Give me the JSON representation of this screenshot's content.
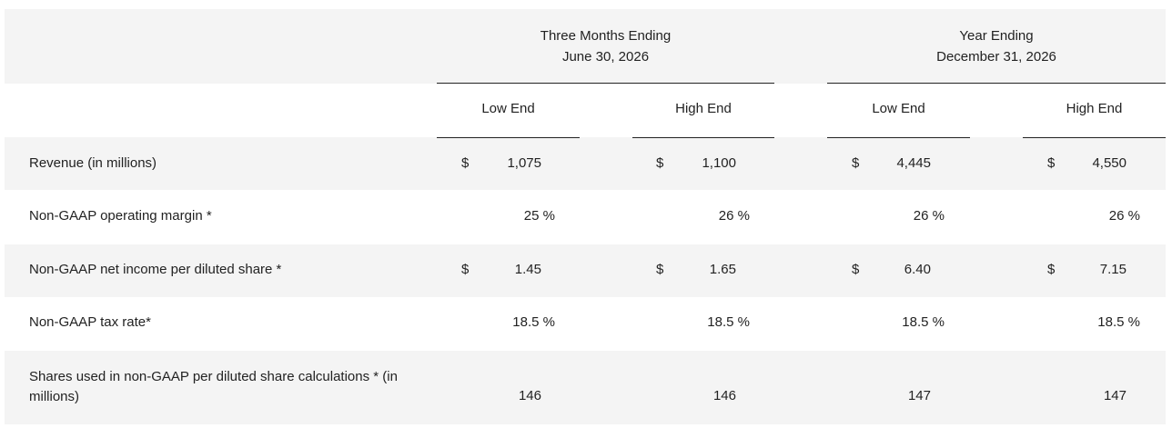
{
  "header": {
    "period_groups": [
      {
        "line1": "Three Months Ending",
        "line2": "June 30, 2026"
      },
      {
        "line1": "Year Ending",
        "line2": "December 31, 2026"
      }
    ],
    "columns": [
      "Low End",
      "High End",
      "Low End",
      "High End"
    ]
  },
  "rows": [
    {
      "label": "Revenue (in millions)",
      "cells": [
        {
          "currency": "$",
          "value": "1,075"
        },
        {
          "currency": "$",
          "value": "1,100"
        },
        {
          "currency": "$",
          "value": "4,445"
        },
        {
          "currency": "$",
          "value": "4,550"
        }
      ]
    },
    {
      "label": "Non-GAAP operating margin *",
      "cells": [
        {
          "currency": "",
          "value": "25 %"
        },
        {
          "currency": "",
          "value": "26 %"
        },
        {
          "currency": "",
          "value": "26 %"
        },
        {
          "currency": "",
          "value": "26 %"
        }
      ]
    },
    {
      "label": "Non-GAAP net income per diluted share *",
      "cells": [
        {
          "currency": "$",
          "value": "1.45"
        },
        {
          "currency": "$",
          "value": "1.65"
        },
        {
          "currency": "$",
          "value": "6.40"
        },
        {
          "currency": "$",
          "value": "7.15"
        }
      ]
    },
    {
      "label": "Non-GAAP tax rate*",
      "cells": [
        {
          "currency": "",
          "value": "18.5 %"
        },
        {
          "currency": "",
          "value": "18.5 %"
        },
        {
          "currency": "",
          "value": "18.5 %"
        },
        {
          "currency": "",
          "value": "18.5 %"
        }
      ]
    },
    {
      "label": "Shares used in non-GAAP per diluted share calculations * (in millions)",
      "cells": [
        {
          "currency": "",
          "value": "146"
        },
        {
          "currency": "",
          "value": "146"
        },
        {
          "currency": "",
          "value": "147"
        },
        {
          "currency": "",
          "value": "147"
        }
      ]
    }
  ]
}
